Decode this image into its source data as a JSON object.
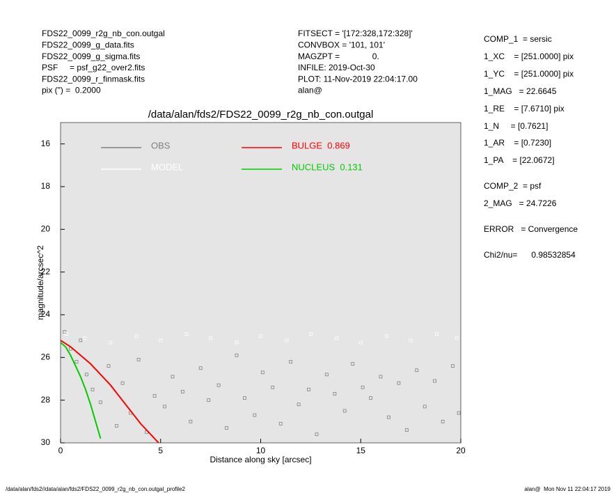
{
  "header": {
    "left": [
      "FDS22_0099_r2g_nb_con.outgal",
      "FDS22_0099_g_data.fits",
      "FDS22_0099_g_sigma.fits",
      "PSF     = psf_g22_over2.fits",
      "FDS22_0099_r_finmask.fits",
      "pix (\") =  0.2000"
    ],
    "center": [
      "FITSECT = '[172:328,172:328]'",
      "CONVBOX = '101, 101'",
      "MAGZPT =              0.",
      "INFILE: 2019-Oct-30",
      "PLOT: 11-Nov-2019 22:04:17.00",
      "alan@"
    ],
    "right": [
      "COMP_1  = sersic",
      "1_XC    = [251.0000] pix",
      "1_YC    = [251.0000] pix",
      "1_MAG   = 22.6645",
      "1_RE    = [7.6710] pix",
      "1_N     = [0.7621]",
      "1_AR    = [0.7230]",
      "1_PA    = [22.0672]",
      "COMP_2  = psf",
      "2_MAG   = 24.7226",
      "ERROR   = Convergence",
      "Chi2/nu=      0.98532854"
    ]
  },
  "footer": {
    "left": "/data/alan/fds2//data/alan/fds2/FDS22_0099_r2g_nb_con.outgal_profile2",
    "right": "alan@  Mon Nov 11 22:04:17 2019"
  },
  "chart_data": {
    "type": "scatter",
    "title": "/data/alan/fds2/FDS22_0099_r2g_nb_con.outgal",
    "x_label": "Distance along sky [arcsec]",
    "y_label": "magnitude/arcsec^2",
    "xlim": [
      0,
      20
    ],
    "xticks": [
      0,
      5,
      10,
      15,
      20
    ],
    "ylim": [
      30,
      15
    ],
    "yticks": [
      16,
      18,
      20,
      22,
      24,
      26,
      28,
      30
    ],
    "background": "#e5e5e5",
    "series": [
      {
        "name": "OBS",
        "color": "#808080",
        "style": "points",
        "x": [
          0.2,
          0.5,
          0.8,
          1.0,
          1.3,
          1.6,
          2.0,
          2.4,
          2.8,
          3.1,
          3.5,
          3.9,
          4.3,
          4.7,
          5.2,
          5.6,
          6.1,
          6.5,
          7.0,
          7.4,
          7.9,
          8.3,
          8.8,
          9.2,
          9.7,
          10.1,
          10.6,
          11.0,
          11.5,
          11.9,
          12.4,
          12.8,
          13.3,
          13.7,
          14.2,
          14.6,
          15.1,
          15.5,
          16.0,
          16.4,
          16.9,
          17.3,
          17.8,
          18.2,
          18.7,
          19.1,
          19.6,
          19.9
        ],
        "values": [
          24.8,
          25.6,
          26.2,
          25.2,
          26.8,
          27.5,
          28.1,
          26.4,
          29.2,
          27.2,
          28.6,
          26.1,
          29.5,
          27.8,
          28.3,
          26.9,
          27.6,
          29.0,
          26.5,
          28.0,
          27.3,
          29.3,
          25.9,
          27.9,
          28.7,
          26.7,
          27.4,
          29.1,
          26.2,
          28.2,
          27.5,
          29.6,
          26.8,
          27.7,
          28.5,
          26.3,
          27.4,
          27.9,
          26.9,
          28.8,
          27.2,
          29.4,
          26.6,
          28.3,
          27.1,
          29.0,
          26.4,
          28.6
        ]
      },
      {
        "name": "MODEL",
        "color": "#ffffff",
        "style": "points",
        "x": [
          0.3,
          1.2,
          2.5,
          3.8,
          5.0,
          6.3,
          7.5,
          8.8,
          10,
          11.3,
          12.5,
          13.8,
          15,
          16.3,
          17.5,
          18.8,
          19.8
        ],
        "values": [
          24.9,
          25.1,
          25.3,
          25.0,
          25.2,
          24.9,
          25.1,
          25.3,
          25.0,
          25.2,
          24.9,
          25.1,
          25.3,
          25.0,
          25.2,
          24.9,
          25.1
        ]
      },
      {
        "name": "BULGE  0.869",
        "color": "#ff0000",
        "style": "line",
        "x": [
          0,
          0.5,
          1,
          1.5,
          2,
          2.5,
          3,
          3.5,
          4,
          4.5,
          4.9
        ],
        "values": [
          25.2,
          25.5,
          25.9,
          26.3,
          26.8,
          27.3,
          27.9,
          28.5,
          29.1,
          29.6,
          30
        ]
      },
      {
        "name": "NUCLEUS  0.131",
        "color": "#00cc00",
        "style": "line",
        "x": [
          0,
          0.25,
          0.5,
          0.75,
          1,
          1.25,
          1.5,
          1.75,
          2
        ],
        "values": [
          25.3,
          25.5,
          25.9,
          26.4,
          26.9,
          27.5,
          28.2,
          29.0,
          29.8
        ]
      }
    ]
  }
}
